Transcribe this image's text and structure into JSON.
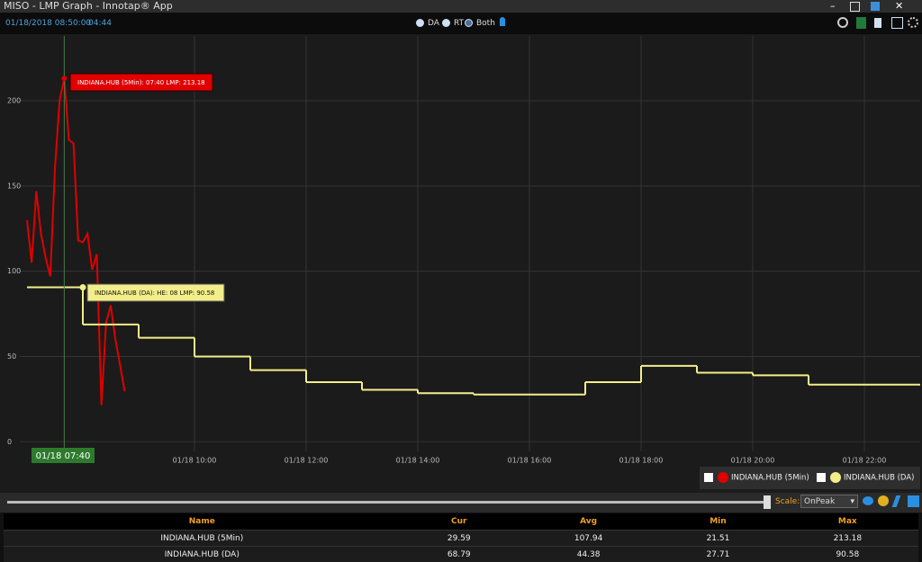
{
  "window": {
    "title": "MISO - LMP Graph - Innotap® App",
    "date": "01/18/2018 08:50:00",
    "time": "04:44",
    "modes": [
      "DA",
      "RT",
      "Both"
    ]
  },
  "chart_data": {
    "type": "line",
    "xlim": [
      420,
      1380
    ],
    "xticks": [
      {
        "value": 600,
        "label": "01/18 10:00"
      },
      {
        "value": 720,
        "label": "01/18 12:00"
      },
      {
        "value": 840,
        "label": "01/18 14:00"
      },
      {
        "value": 960,
        "label": "01/18 16:00"
      },
      {
        "value": 1080,
        "label": "01/18 18:00"
      },
      {
        "value": 1200,
        "label": "01/18 20:00"
      },
      {
        "value": 1320,
        "label": "01/18 22:00"
      }
    ],
    "ylim": [
      -3,
      238
    ],
    "yticks": [
      0,
      50,
      100,
      150,
      200
    ],
    "grid": true,
    "legend_position": "bottom-right",
    "cursor_label": "01/18 07:40",
    "tooltips": [
      "INDIANA.HUB (5Min): 07:40 LMP: 213.18",
      "INDIANA.HUB (DA): HE: 08 LMP: 90.58"
    ],
    "series": [
      {
        "name": "INDIANA.HUB (5Min)",
        "color": "#e00000",
        "step": false,
        "x": [
          420,
          425,
          430,
          435,
          440,
          445,
          450,
          455,
          460,
          465,
          470,
          475,
          480,
          485,
          490,
          495,
          500,
          505,
          510,
          515,
          520,
          525
        ],
        "values": [
          130,
          105,
          147,
          122,
          108,
          97,
          160,
          200,
          213.18,
          177,
          175,
          118,
          117,
          122,
          101,
          110,
          21.51,
          70,
          80,
          60,
          45,
          29.59
        ]
      },
      {
        "name": "INDIANA.HUB (DA)",
        "color": "#f3ee8a",
        "step": true,
        "x": [
          420,
          480,
          540,
          600,
          660,
          720,
          780,
          840,
          900,
          1020,
          1080,
          1140,
          1200,
          1260
        ],
        "values": [
          90.58,
          68.79,
          61,
          50,
          42,
          35,
          30.5,
          28.5,
          27.71,
          35,
          44.5,
          40.5,
          39,
          33.5
        ]
      }
    ]
  },
  "controls": {
    "scale_label": "Scale:",
    "scale_value": "OnPeak"
  },
  "table": {
    "columns": [
      "Name",
      "Cur",
      "Avg",
      "Min",
      "Max"
    ],
    "rows": [
      [
        "INDIANA.HUB (5Min)",
        29.59,
        107.94,
        21.51,
        213.18
      ],
      [
        "INDIANA.HUB (DA)",
        68.79,
        44.38,
        27.71,
        90.58
      ]
    ]
  }
}
